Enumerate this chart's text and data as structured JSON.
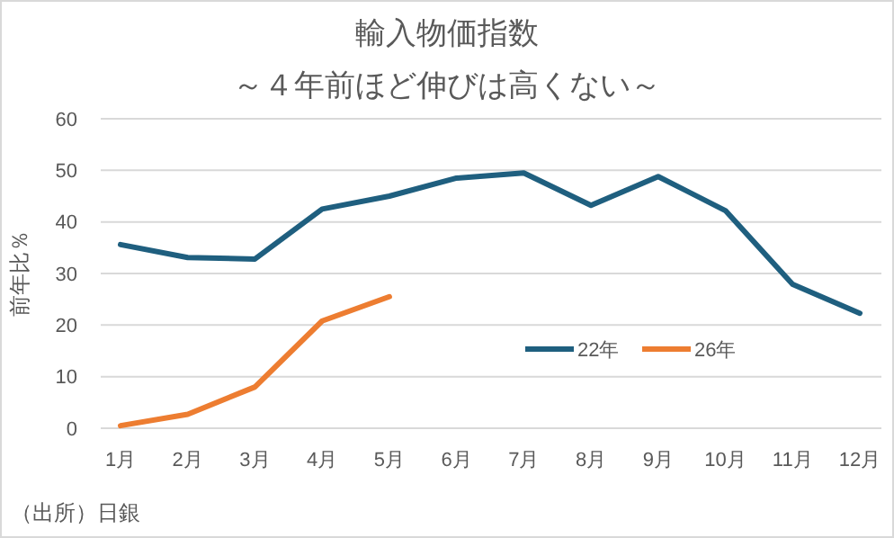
{
  "chart_data": {
    "type": "line",
    "title": "輸入物価指数",
    "subtitle": "～４年前ほど伸びは高くない～",
    "ylabel": "前年比％",
    "categories": [
      "1月",
      "2月",
      "3月",
      "4月",
      "5月",
      "6月",
      "7月",
      "8月",
      "9月",
      "10月",
      "11月",
      "12月"
    ],
    "series": [
      {
        "name": "22年",
        "color": "#1f5f7f",
        "values": [
          35.6,
          33.1,
          32.8,
          42.5,
          45.0,
          48.5,
          49.5,
          43.2,
          48.8,
          42.2,
          27.9,
          22.3
        ]
      },
      {
        "name": "26年",
        "color": "#ed7d31",
        "values": [
          0.5,
          2.7,
          8,
          20.8,
          25.5,
          null,
          null,
          null,
          null,
          null,
          null,
          null
        ]
      }
    ],
    "ylim": [
      0,
      60
    ],
    "yticks": [
      0,
      10,
      20,
      30,
      40,
      50,
      60
    ],
    "grid": "y",
    "legend": "center",
    "marker": "none",
    "line_style": "solid",
    "annotations": [
      "（出所）日銀"
    ]
  }
}
